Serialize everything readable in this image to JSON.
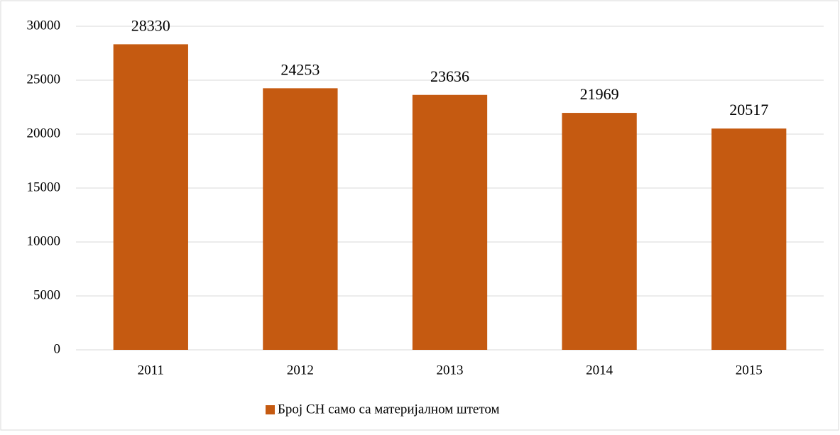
{
  "chart_data": {
    "type": "bar",
    "categories": [
      "2011",
      "2012",
      "2013",
      "2014",
      "2015"
    ],
    "series": [
      {
        "name": "Број СН само са материјалном штетом",
        "color": "#c55a11",
        "values": [
          28330,
          24253,
          23636,
          21969,
          20517
        ]
      }
    ],
    "ylim": [
      0,
      30000
    ],
    "yticks": [
      0,
      5000,
      10000,
      15000,
      20000,
      25000,
      30000
    ],
    "grid": true,
    "legend": "bottom"
  }
}
